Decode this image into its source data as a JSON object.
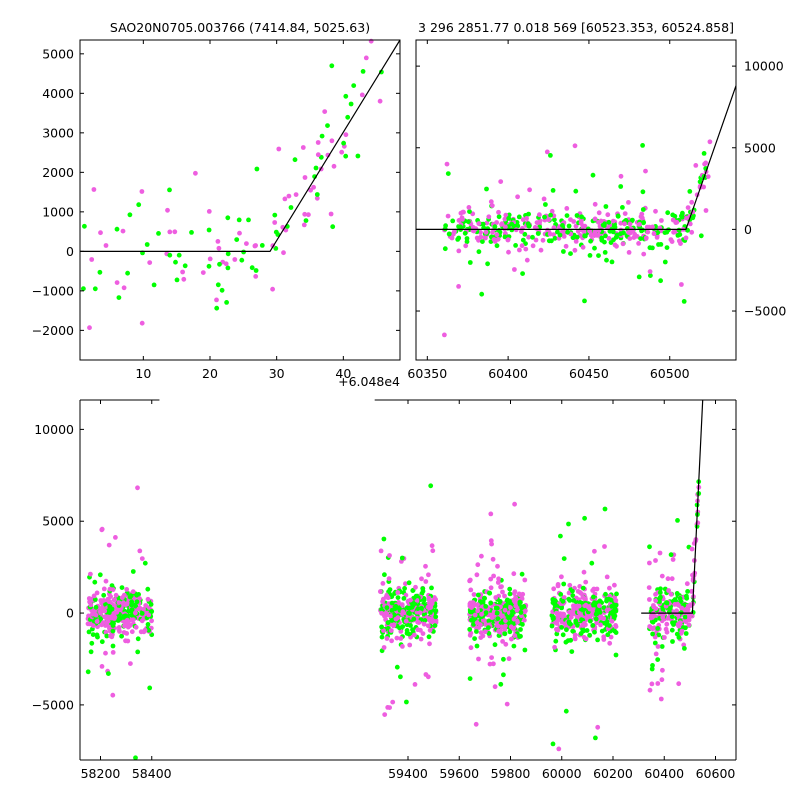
{
  "chart_data": [
    {
      "id": "top-left",
      "type": "scatter",
      "title": "SAO20N0705.003766 (7414.84, 5025.63)",
      "xlim": [
        0.5,
        48.5
      ],
      "ylim": [
        -2750,
        5350
      ],
      "xticks": [
        10,
        20,
        30,
        40
      ],
      "yticks": [
        -2000,
        -1000,
        0,
        1000,
        2000,
        3000,
        4000,
        5000
      ],
      "offset_label": "+6.048e4",
      "colors": {
        "green": "#00ff00",
        "magenta": "#ee5ee0"
      },
      "model_line": {
        "x": [
          0.5,
          29.0,
          48.5
        ],
        "y": [
          0,
          0,
          5350
        ]
      }
    },
    {
      "id": "top-right",
      "type": "scatter",
      "title": "3 296 2851.77 0.018 569 [60523.353, 60524.858]",
      "xlim": [
        60343,
        60541
      ],
      "ylim": [
        -8000,
        11600
      ],
      "xticks": [
        60350,
        60400,
        60450,
        60500
      ],
      "yticks": [
        -5000,
        0,
        5000,
        10000
      ],
      "colors": {
        "green": "#00ff00",
        "magenta": "#ee5ee0"
      },
      "model_line": {
        "x": [
          60343,
          60510,
          60541
        ],
        "y": [
          0,
          0,
          8800
        ]
      }
    },
    {
      "id": "bottom",
      "type": "scatter",
      "xlim": [
        58120,
        60680
      ],
      "ylim": [
        -8000,
        11600
      ],
      "xticks": [
        58200,
        58400,
        59400,
        59600,
        59800,
        60000,
        60200,
        60400,
        60600
      ],
      "yticks": [
        -5000,
        0,
        5000,
        10000
      ],
      "gap": [
        58430,
        59270
      ],
      "clusters": [
        {
          "x_range": [
            58150,
            58400
          ],
          "n": 380
        },
        {
          "x_range": [
            59290,
            59510
          ],
          "n": 380
        },
        {
          "x_range": [
            59640,
            59860
          ],
          "n": 380
        },
        {
          "x_range": [
            59960,
            60215
          ],
          "n": 380
        },
        {
          "x_range": [
            60340,
            60535
          ],
          "n": 260
        }
      ],
      "colors": {
        "green": "#00ff00",
        "magenta": "#ee5ee0"
      },
      "model_line": {
        "x": [
          60310,
          60510,
          60550
        ],
        "y": [
          0,
          0,
          11600
        ]
      }
    }
  ]
}
